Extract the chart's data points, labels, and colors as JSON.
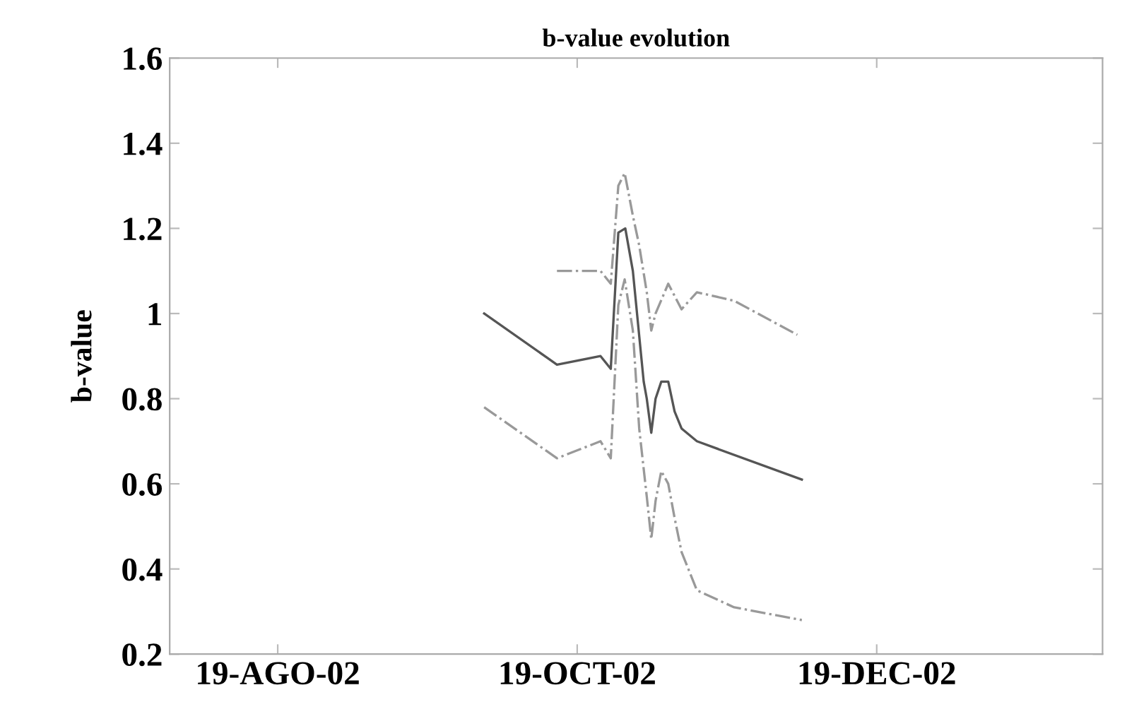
{
  "chart_data": {
    "type": "line",
    "title": "b-value evolution",
    "ylabel": "b-value",
    "xlim": [
      "2002-07-28",
      "2003-02-03"
    ],
    "xticks": [
      {
        "value": "2002-08-19",
        "label": "19-AGO-02"
      },
      {
        "value": "2002-10-19",
        "label": "19-OCT-02"
      },
      {
        "value": "2002-12-19",
        "label": "19-DEC-02"
      }
    ],
    "ylim": [
      0.2,
      1.6
    ],
    "yticks": [
      0.2,
      0.4,
      0.6,
      0.8,
      1,
      1.2,
      1.4,
      1.6
    ],
    "grid": false,
    "marker": "none",
    "series": [
      {
        "color": "#555555",
        "line_style": "solid",
        "x": [
          "2002-09-30T01:00",
          "2002-10-14T21:00",
          "2002-10-23T18:00",
          "2002-10-25T20:00",
          "2002-10-27T09:00",
          "2002-10-28T19:00",
          "2002-10-30T08:00",
          "2002-11-01T13:00",
          "2002-11-02T04:00",
          "2002-11-03T02:00",
          "2002-11-03T23:00",
          "2002-11-05T03:00",
          "2002-11-06T13:00",
          "2002-11-07T20:00",
          "2002-11-09T06:00",
          "2002-11-12T09:00",
          "2002-12-03T18:00"
        ],
        "values": [
          1.0,
          0.88,
          0.9,
          0.87,
          1.19,
          1.2,
          1.1,
          0.84,
          0.8,
          0.72,
          0.8,
          0.84,
          0.84,
          0.77,
          0.73,
          0.7,
          0.61
        ]
      },
      {
        "color": "#999999",
        "line_style": "dashdot",
        "x": [
          "2002-10-14T21:00",
          "2002-10-23T18:00",
          "2002-10-25T20:00",
          "2002-10-27T09:00",
          "2002-10-28T16:00",
          "2002-10-30T08:00",
          "2002-10-31T15:00",
          "2002-11-02T04:00",
          "2002-11-03T02:00",
          "2002-11-03T23:00",
          "2002-11-06T13:00",
          "2002-11-09T06:00",
          "2002-11-12T09:00",
          "2002-11-19T23:00",
          "2002-12-02T20:00"
        ],
        "values": [
          1.1,
          1.1,
          1.07,
          1.3,
          1.33,
          1.23,
          1.16,
          1.05,
          0.96,
          1.0,
          1.07,
          1.01,
          1.05,
          1.03,
          0.95
        ]
      },
      {
        "color": "#999999",
        "line_style": "dashdot",
        "x": [
          "2002-09-30T01:00",
          "2002-10-14T21:00",
          "2002-10-23T18:00",
          "2002-10-25T20:00",
          "2002-10-27T09:00",
          "2002-10-28T16:00",
          "2002-10-30T08:00",
          "2002-10-31T15:00",
          "2002-11-02T04:00",
          "2002-11-03T02:00",
          "2002-11-03T23:00",
          "2002-11-05T03:00",
          "2002-11-06T13:00",
          "2002-11-07T20:00",
          "2002-11-09T06:00",
          "2002-11-12T09:00",
          "2002-11-19T23:00",
          "2002-12-03T18:00"
        ],
        "values": [
          0.78,
          0.66,
          0.7,
          0.66,
          1.02,
          1.08,
          0.96,
          0.73,
          0.57,
          0.47,
          0.56,
          0.63,
          0.6,
          0.52,
          0.44,
          0.35,
          0.31,
          0.28
        ]
      }
    ]
  }
}
